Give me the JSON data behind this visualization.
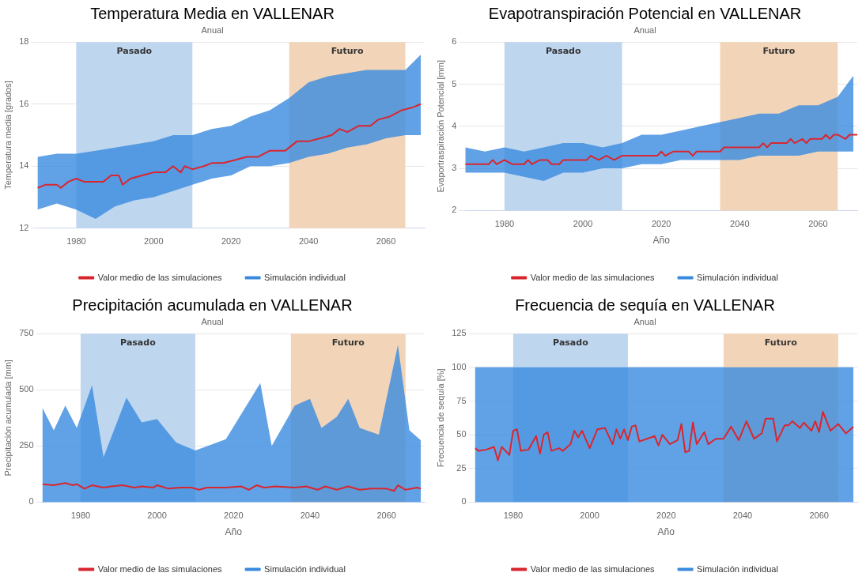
{
  "chart_data": [
    {
      "type": "line",
      "title": "Temperatura Media en VALLENAR",
      "subtitle": "Anual",
      "ylabel": "Temperatura media [grados]",
      "xlim": [
        1970,
        2070
      ],
      "xticks": [
        1980,
        2000,
        2020,
        2040,
        2060
      ],
      "ylim": [
        12,
        18
      ],
      "yticks": [
        12,
        14,
        16,
        18
      ],
      "grid": "y",
      "legend": "bottom",
      "bands": [
        {
          "axis": "x",
          "from": 1980,
          "to": 2010,
          "label": "Pasado",
          "color": "#bfd6ef"
        },
        {
          "axis": "x",
          "from": 2035,
          "to": 2065,
          "label": "Futuro",
          "color": "#f2d5b8"
        }
      ],
      "series": [
        {
          "name": "Simulación individual",
          "color": "#3a8be0",
          "x": [
            1970,
            1975,
            1980,
            1985,
            1990,
            1995,
            2000,
            2005,
            2010,
            2015,
            2020,
            2025,
            2030,
            2035,
            2040,
            2045,
            2050,
            2055,
            2060,
            2065,
            2069
          ],
          "values": [
            null,
            null,
            null,
            null,
            null,
            null,
            null,
            null,
            null,
            null,
            null,
            null,
            null,
            null,
            null,
            null,
            null,
            null,
            null,
            null,
            null
          ],
          "lower": [
            12.6,
            12.8,
            12.6,
            12.3,
            12.7,
            12.9,
            13.0,
            13.2,
            13.4,
            13.6,
            13.7,
            14.0,
            14.0,
            14.1,
            14.3,
            14.4,
            14.6,
            14.7,
            14.9,
            15.0,
            15.0
          ],
          "upper": [
            14.3,
            14.4,
            14.4,
            14.5,
            14.6,
            14.7,
            14.8,
            15.0,
            15.0,
            15.2,
            15.3,
            15.6,
            15.8,
            16.2,
            16.7,
            16.9,
            17.0,
            17.1,
            17.1,
            17.1,
            17.6
          ]
        },
        {
          "name": "Valor medio de las simulaciones",
          "color": "#d9262e",
          "x": [
            1970,
            1972,
            1975,
            1976,
            1978,
            1980,
            1982,
            1987,
            1989,
            1991,
            1992,
            1994,
            1997,
            2000,
            2003,
            2005,
            2007,
            2008,
            2010,
            2013,
            2015,
            2018,
            2021,
            2024,
            2027,
            2030,
            2034,
            2037,
            2040,
            2043,
            2046,
            2048,
            2050,
            2053,
            2056,
            2058,
            2061,
            2064,
            2067,
            2069
          ],
          "values": [
            13.3,
            13.4,
            13.4,
            13.3,
            13.5,
            13.6,
            13.5,
            13.5,
            13.7,
            13.7,
            13.4,
            13.6,
            13.7,
            13.8,
            13.8,
            14.0,
            13.8,
            14.0,
            13.9,
            14.0,
            14.1,
            14.1,
            14.2,
            14.3,
            14.3,
            14.5,
            14.5,
            14.8,
            14.8,
            14.9,
            15.0,
            15.2,
            15.1,
            15.3,
            15.3,
            15.5,
            15.6,
            15.8,
            15.9,
            16.0
          ]
        }
      ]
    },
    {
      "type": "line",
      "title": "Evapotranspiración Potencial en VALLENAR",
      "subtitle": "Anual",
      "xlabel": "Año",
      "ylabel": "Evaportraspiración Potencial [mm]",
      "xlim": [
        1970,
        2070
      ],
      "xticks": [
        1980,
        2000,
        2020,
        2040,
        2060
      ],
      "ylim": [
        2,
        6
      ],
      "yticks": [
        2,
        3,
        4,
        5,
        6
      ],
      "grid": "y",
      "legend": "bottom",
      "bands": [
        {
          "axis": "x",
          "from": 1980,
          "to": 2010,
          "label": "Pasado",
          "color": "#bfd6ef"
        },
        {
          "axis": "x",
          "from": 2035,
          "to": 2065,
          "label": "Futuro",
          "color": "#f2d5b8"
        }
      ],
      "series": [
        {
          "name": "Simulación individual",
          "color": "#3a8be0",
          "x": [
            1970,
            1975,
            1980,
            1985,
            1990,
            1995,
            2000,
            2005,
            2010,
            2015,
            2020,
            2025,
            2030,
            2035,
            2040,
            2045,
            2050,
            2055,
            2060,
            2065,
            2069
          ],
          "values": [
            null,
            null,
            null,
            null,
            null,
            null,
            null,
            null,
            null,
            null,
            null,
            null,
            null,
            null,
            null,
            null,
            null,
            null,
            null,
            null,
            null
          ],
          "lower": [
            2.9,
            2.9,
            2.9,
            2.8,
            2.7,
            2.9,
            2.9,
            3.0,
            3.0,
            3.1,
            3.1,
            3.2,
            3.2,
            3.2,
            3.2,
            3.3,
            3.3,
            3.3,
            3.4,
            3.4,
            3.4
          ],
          "upper": [
            3.5,
            3.4,
            3.5,
            3.4,
            3.5,
            3.6,
            3.6,
            3.5,
            3.6,
            3.8,
            3.8,
            3.9,
            4.0,
            4.1,
            4.2,
            4.3,
            4.3,
            4.5,
            4.5,
            4.7,
            5.2
          ]
        },
        {
          "name": "Valor medio de las simulaciones",
          "color": "#d9262e",
          "x": [
            1970,
            1976,
            1977,
            1978,
            1980,
            1982,
            1985,
            1986,
            1987,
            1989,
            1991,
            1992,
            1994,
            1995,
            1997,
            2001,
            2002,
            2004,
            2006,
            2008,
            2010,
            2019,
            2020,
            2021,
            2023,
            2027,
            2028,
            2029,
            2035,
            2036,
            2045,
            2046,
            2047,
            2048,
            2052,
            2053,
            2054,
            2056,
            2057,
            2058,
            2061,
            2062,
            2063,
            2064,
            2065,
            2067,
            2068,
            2070
          ],
          "values": [
            3.1,
            3.1,
            3.2,
            3.1,
            3.2,
            3.1,
            3.1,
            3.2,
            3.1,
            3.2,
            3.2,
            3.1,
            3.1,
            3.2,
            3.2,
            3.2,
            3.3,
            3.2,
            3.3,
            3.2,
            3.3,
            3.3,
            3.4,
            3.3,
            3.4,
            3.4,
            3.3,
            3.4,
            3.4,
            3.5,
            3.5,
            3.6,
            3.5,
            3.6,
            3.6,
            3.7,
            3.6,
            3.7,
            3.6,
            3.7,
            3.7,
            3.8,
            3.7,
            3.8,
            3.8,
            3.7,
            3.8,
            3.8
          ]
        }
      ]
    },
    {
      "type": "line",
      "title": "Precipitación acumulada en VALLENAR",
      "subtitle": "Anual",
      "xlabel": "Año",
      "ylabel": "Precipitación acumulada [mm]",
      "xlim": [
        1970,
        2070
      ],
      "xticks": [
        1980,
        2000,
        2020,
        2040,
        2060
      ],
      "ylim": [
        0,
        750
      ],
      "yticks": [
        0,
        250,
        500,
        750
      ],
      "grid": "y",
      "legend": "bottom",
      "bands": [
        {
          "axis": "x",
          "from": 1980,
          "to": 2010,
          "label": "Pasado",
          "color": "#bfd6ef"
        },
        {
          "axis": "x",
          "from": 2035,
          "to": 2065,
          "label": "Futuro",
          "color": "#f2d5b8"
        }
      ],
      "series": [
        {
          "name": "Simulación individual",
          "color": "#3a8be0",
          "x": [
            1970,
            1973,
            1976,
            1979,
            1983,
            1986,
            1992,
            1996,
            2000,
            2005,
            2010,
            2018,
            2027,
            2030,
            2036,
            2040,
            2043,
            2047,
            2050,
            2053,
            2058,
            2063,
            2066,
            2069
          ],
          "values": [
            null,
            null,
            null,
            null,
            null,
            null,
            null,
            null,
            null,
            null,
            null,
            null,
            null,
            null,
            null,
            null,
            null,
            null,
            null,
            null,
            null,
            null,
            null,
            null
          ],
          "lower": [
            0,
            0,
            0,
            0,
            0,
            0,
            0,
            0,
            0,
            0,
            0,
            0,
            0,
            0,
            0,
            0,
            0,
            0,
            0,
            0,
            0,
            0,
            0,
            0
          ],
          "upper": [
            420,
            320,
            430,
            330,
            520,
            200,
            465,
            355,
            370,
            265,
            230,
            280,
            530,
            250,
            430,
            460,
            330,
            380,
            460,
            330,
            300,
            700,
            320,
            275
          ]
        },
        {
          "name": "Valor medio de las simulaciones",
          "color": "#d9262e",
          "x": [
            1970,
            1973,
            1976,
            1978,
            1979,
            1981,
            1983,
            1986,
            1988,
            1991,
            1994,
            1996,
            1999,
            2000,
            2003,
            2006,
            2009,
            2011,
            2013,
            2018,
            2022,
            2024,
            2026,
            2028,
            2031,
            2036,
            2039,
            2042,
            2044,
            2047,
            2050,
            2053,
            2056,
            2060,
            2062,
            2063,
            2065,
            2068,
            2069
          ],
          "values": [
            80,
            75,
            85,
            75,
            80,
            60,
            75,
            65,
            70,
            75,
            65,
            70,
            65,
            75,
            60,
            65,
            65,
            55,
            65,
            65,
            70,
            55,
            75,
            65,
            70,
            65,
            70,
            55,
            70,
            55,
            70,
            55,
            60,
            60,
            50,
            75,
            55,
            65,
            60
          ]
        }
      ]
    },
    {
      "type": "line",
      "title": "Frecuencia de sequía en VALLENAR",
      "subtitle": "Anual",
      "xlabel": "Año",
      "ylabel": "Frecuencia de sequía [%]",
      "xlim": [
        1970,
        2070
      ],
      "xticks": [
        1980,
        2000,
        2020,
        2040,
        2060
      ],
      "ylim": [
        0,
        125
      ],
      "yticks": [
        0,
        25,
        50,
        75,
        100,
        125
      ],
      "grid": "y",
      "legend": "bottom",
      "bands": [
        {
          "axis": "x",
          "from": 1980,
          "to": 2010,
          "label": "Pasado",
          "color": "#bfd6ef"
        },
        {
          "axis": "x",
          "from": 2035,
          "to": 2065,
          "label": "Futuro",
          "color": "#f2d5b8"
        }
      ],
      "series": [
        {
          "name": "Simulación individual",
          "color": "#3a8be0",
          "x": [
            1970,
            2069
          ],
          "values": [
            null,
            null
          ],
          "lower": [
            0,
            0
          ],
          "upper": [
            100,
            100
          ]
        },
        {
          "name": "Valor medio de las simulaciones",
          "color": "#d9262e",
          "x": [
            1970,
            1971,
            1973,
            1975,
            1976,
            1977,
            1979,
            1980,
            1981,
            1982,
            1984,
            1986,
            1987,
            1988,
            1989,
            1990,
            1992,
            1993,
            1995,
            1996,
            1997,
            1998,
            2000,
            2002,
            2004,
            2006,
            2007,
            2008,
            2009,
            2010,
            2011,
            2012,
            2013,
            2015,
            2017,
            2018,
            2019,
            2021,
            2023,
            2024,
            2025,
            2026,
            2027,
            2028,
            2030,
            2031,
            2033,
            2035,
            2037,
            2039,
            2041,
            2043,
            2045,
            2046,
            2048,
            2049,
            2051,
            2052,
            2053,
            2055,
            2056,
            2058,
            2059,
            2060,
            2061,
            2063,
            2065,
            2067,
            2069
          ],
          "values": [
            40,
            38,
            39,
            41,
            31,
            41,
            35,
            53,
            54,
            38,
            39,
            49,
            36,
            50,
            52,
            38,
            40,
            38,
            43,
            53,
            48,
            53,
            40,
            54,
            55,
            43,
            54,
            47,
            54,
            46,
            56,
            57,
            45,
            47,
            49,
            42,
            50,
            43,
            46,
            58,
            37,
            38,
            59,
            43,
            52,
            43,
            47,
            47,
            56,
            46,
            60,
            47,
            51,
            62,
            62,
            45,
            57,
            57,
            60,
            55,
            59,
            53,
            60,
            52,
            67,
            53,
            58,
            51,
            56
          ]
        }
      ]
    }
  ]
}
